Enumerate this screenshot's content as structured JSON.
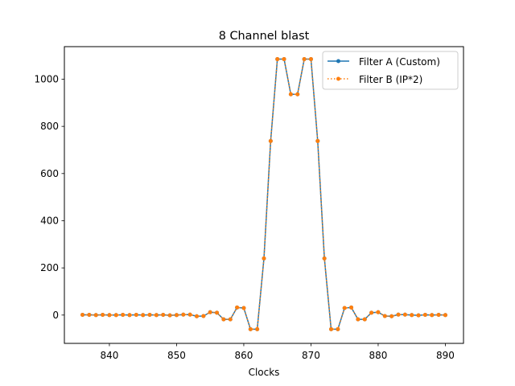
{
  "chart_data": {
    "type": "line",
    "title": "8 Channel blast",
    "xlabel": "Clocks",
    "ylabel": "",
    "xlim": [
      833.3,
      892.7
    ],
    "ylim": [
      -120,
      1138
    ],
    "xticks": [
      840,
      850,
      860,
      870,
      880,
      890
    ],
    "yticks": [
      0,
      200,
      400,
      600,
      800,
      1000
    ],
    "grid": false,
    "legend_position": "top-right",
    "x": [
      836,
      837,
      838,
      839,
      840,
      841,
      842,
      843,
      844,
      845,
      846,
      847,
      848,
      849,
      850,
      851,
      852,
      853,
      854,
      855,
      856,
      857,
      858,
      859,
      860,
      861,
      862,
      863,
      864,
      865,
      866,
      867,
      868,
      869,
      870,
      871,
      872,
      873,
      874,
      875,
      876,
      877,
      878,
      879,
      880,
      881,
      882,
      883,
      884,
      885,
      886,
      887,
      888,
      889,
      890
    ],
    "series": [
      {
        "name": "Filter A (Custom)",
        "color": "#1f77b4",
        "linestyle": "solid",
        "marker": "dot",
        "values": [
          1,
          1,
          0,
          1,
          0,
          0,
          1,
          0,
          1,
          0,
          1,
          0,
          1,
          -1,
          0,
          2,
          2,
          -5,
          -4,
          12,
          10,
          -18,
          -18,
          32,
          30,
          -60,
          -60,
          240,
          738,
          1085,
          1085,
          936,
          936,
          1085,
          1085,
          738,
          240,
          -60,
          -60,
          30,
          32,
          -18,
          -18,
          10,
          12,
          -4,
          -5,
          2,
          2,
          0,
          -1,
          1,
          0,
          1,
          0
        ]
      },
      {
        "name": "Filter B (IP*2)",
        "color": "#ff7f0e",
        "linestyle": "dotted",
        "marker": "dot",
        "values": [
          1,
          1,
          0,
          1,
          0,
          0,
          1,
          0,
          1,
          0,
          1,
          0,
          1,
          -1,
          0,
          2,
          2,
          -5,
          -4,
          12,
          10,
          -18,
          -18,
          32,
          30,
          -60,
          -60,
          240,
          738,
          1085,
          1085,
          936,
          936,
          1085,
          1085,
          738,
          240,
          -60,
          -60,
          30,
          32,
          -18,
          -18,
          10,
          12,
          -4,
          -5,
          2,
          2,
          0,
          -1,
          1,
          0,
          1,
          0
        ]
      }
    ]
  }
}
